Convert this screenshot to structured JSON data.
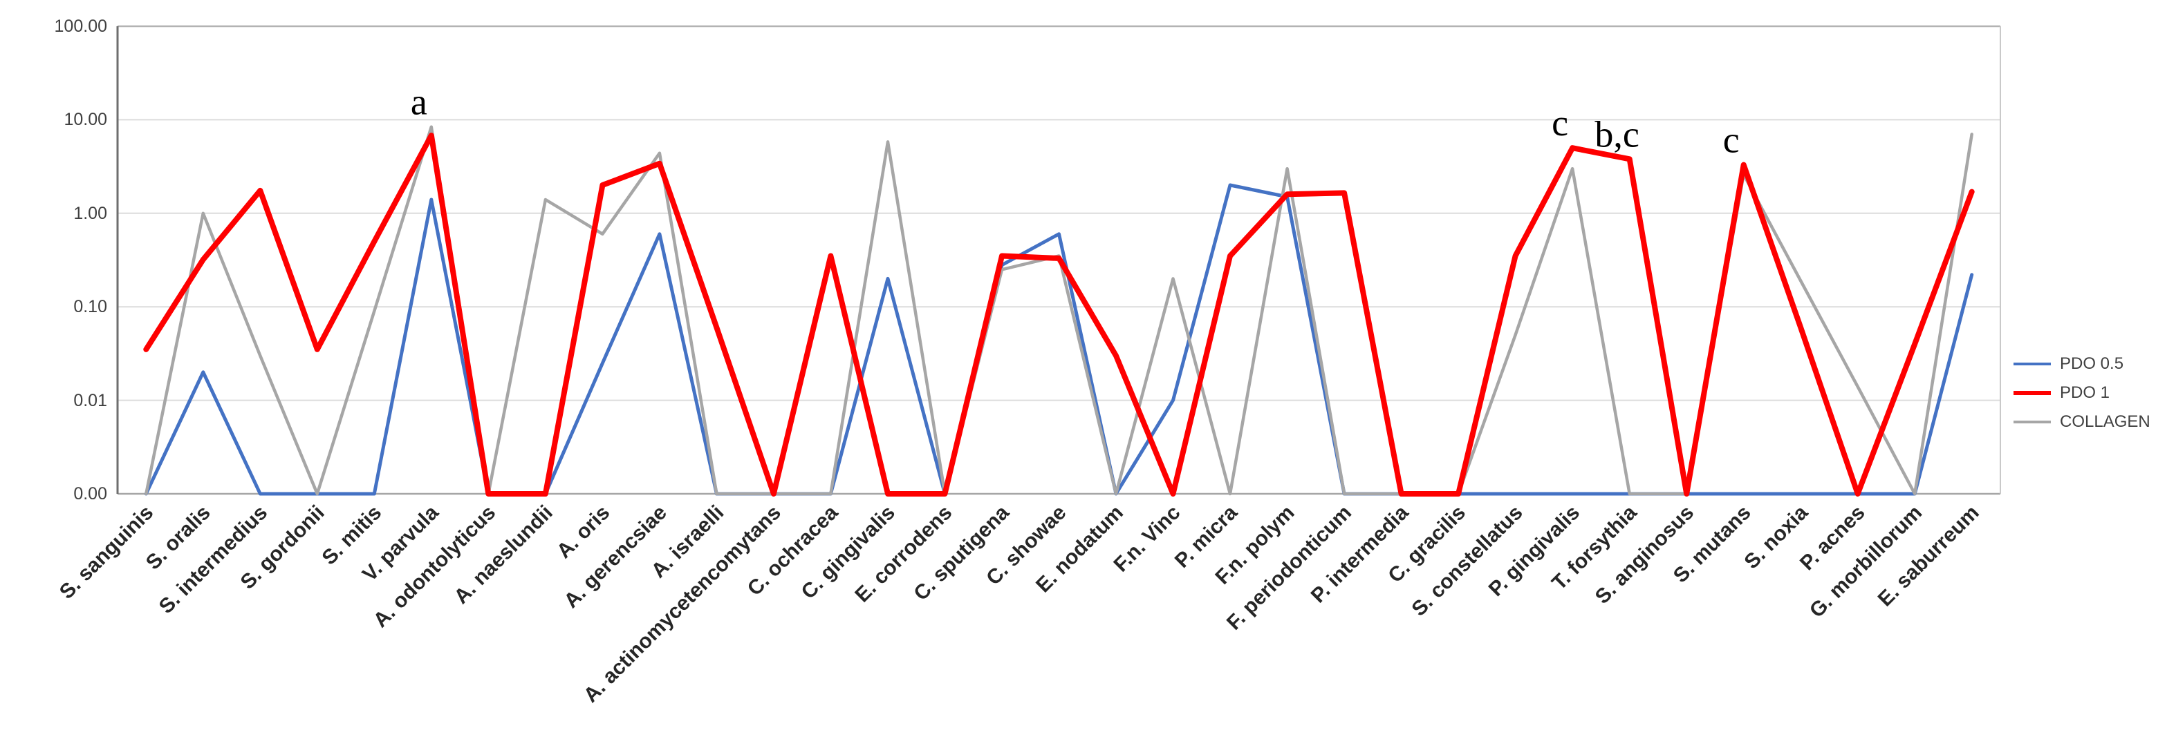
{
  "chart_data": {
    "type": "line",
    "title": "",
    "xlabel": "",
    "ylabel": "",
    "y_axis": {
      "scale": "log",
      "tick_labels": [
        "100.00",
        "10.00",
        "1.00",
        "0.10",
        "0.01",
        "0.00"
      ],
      "top_value": 100,
      "decades_shown": 5,
      "zero_at_baseline": true,
      "grid": true
    },
    "categories": [
      "S. sanguinis",
      "S. oralis",
      "S. intermedius",
      "S. gordonii",
      "S. mitis",
      "V. parvula",
      "A. odontolyticus",
      "A. naeslundii",
      "A. oris",
      "A. gerencsiae",
      "A. israelli",
      "A. actinomycetencomytans",
      "C. ochracea",
      "C. gingivalis",
      "E. corrodens",
      "C. sputigena",
      "C. showae",
      "E. nodatum",
      "F.n. Vinc",
      "P. micra",
      "F.n. polym",
      "F. periodonticum",
      "P. intermedia",
      "C. gracilis",
      "S. constellatus",
      "P. gingivalis",
      "T. forsythia",
      "S. anginosus",
      "S. mutans",
      "S. noxia",
      "P. acnes",
      "G. morbillorum",
      "E. saburreum"
    ],
    "series": [
      {
        "name": "PDO 0.5",
        "color": "#4472C4",
        "stroke_width": 5,
        "values": [
          0,
          0.02,
          0,
          0,
          0,
          1.4,
          0,
          0,
          0.025,
          0.6,
          0,
          0,
          0,
          0.2,
          0,
          0.28,
          0.6,
          0,
          0.01,
          2.0,
          1.5,
          0,
          0,
          0,
          0,
          0,
          0,
          0,
          0,
          0,
          0,
          0,
          0.22
        ]
      },
      {
        "name": "PDO 1",
        "color": "#FE0000",
        "stroke_width": 8,
        "values": [
          0.035,
          0.32,
          1.75,
          0.035,
          0.5,
          6.8,
          0,
          0,
          2.0,
          3.4,
          0.06,
          0,
          0.35,
          0,
          0,
          0.35,
          0.33,
          0.03,
          0,
          0.35,
          1.6,
          1.65,
          0,
          0,
          0.35,
          5.0,
          3.8,
          0,
          3.3,
          0.06,
          0,
          0.04,
          1.7
        ]
      },
      {
        "name": "COLLAGEN",
        "color": "#A6A6A6",
        "stroke_width": 4.5,
        "values": [
          0,
          1.0,
          0.03,
          0,
          0.09,
          8.4,
          0,
          1.4,
          0.6,
          4.4,
          0,
          0,
          0,
          5.8,
          0,
          0.25,
          0.35,
          0,
          0.2,
          0,
          3.0,
          0,
          0,
          0,
          0.05,
          3.0,
          0,
          0,
          2.6,
          0.19,
          0.014,
          0,
          7.0
        ]
      }
    ],
    "draw_order": [
      0,
      2,
      1
    ],
    "annotations": [
      {
        "category_index": 5,
        "text": "a"
      },
      {
        "category_index": 25,
        "text": "c"
      },
      {
        "category_index": 26,
        "text": "b,c"
      },
      {
        "category_index": 28,
        "text": "c"
      }
    ],
    "legend": {
      "position": "right",
      "items": [
        "PDO 0.5",
        "PDO 1",
        "COLLAGEN"
      ]
    }
  }
}
